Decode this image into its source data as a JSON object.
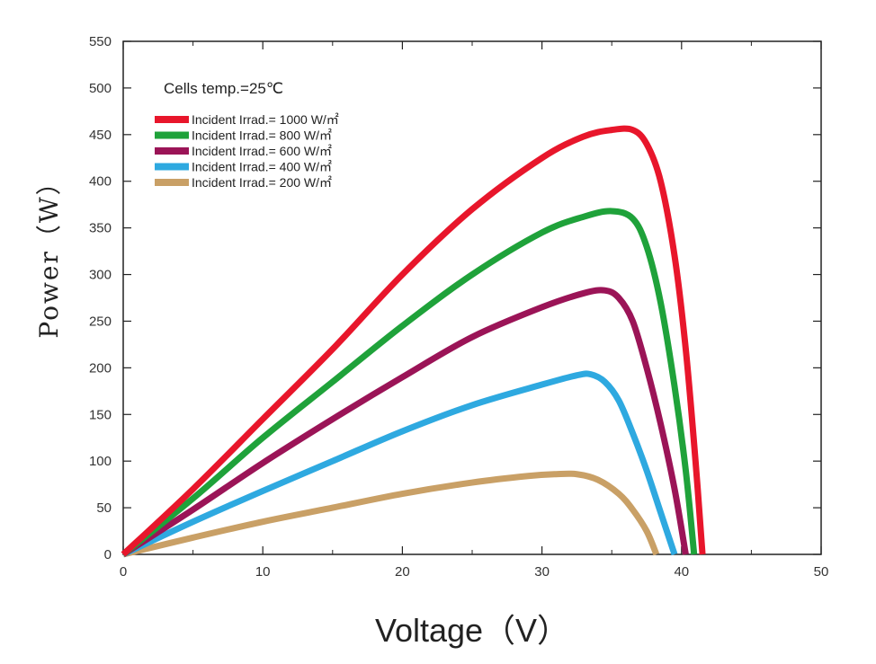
{
  "chart_data": {
    "type": "line",
    "xlabel": "Voltage（V）",
    "ylabel": "Power（W）",
    "xlim": [
      0,
      50
    ],
    "ylim": [
      0,
      550
    ],
    "xticks": [
      0,
      10,
      20,
      30,
      40,
      50
    ],
    "yticks": [
      0,
      50,
      100,
      150,
      200,
      250,
      300,
      350,
      400,
      450,
      500,
      550
    ],
    "grid": false,
    "legend_position": "top-left",
    "annotation": "Cells temp.=25℃",
    "series": [
      {
        "name": "Incident Irrad.= 1000 W/㎡",
        "color": "#e8162b",
        "x": [
          0,
          5,
          10,
          15,
          20,
          25,
          30,
          33,
          35,
          36.5,
          37.5,
          38.5,
          39.5,
          40.3,
          41,
          41.5
        ],
        "y": [
          0,
          70,
          145,
          220,
          300,
          370,
          425,
          448,
          455,
          455,
          440,
          400,
          320,
          220,
          100,
          0
        ]
      },
      {
        "name": "Incident Irrad.= 800 W/㎡",
        "color": "#1fa23a",
        "x": [
          0,
          5,
          10,
          15,
          20,
          25,
          30,
          33,
          35,
          36.5,
          37.5,
          38.5,
          39.5,
          40.3,
          40.9
        ],
        "y": [
          0,
          60,
          125,
          185,
          245,
          300,
          345,
          362,
          368,
          360,
          330,
          270,
          180,
          90,
          0
        ]
      },
      {
        "name": "Incident Irrad.= 600 W/㎡",
        "color": "#9b1457",
        "x": [
          0,
          5,
          10,
          15,
          20,
          25,
          30,
          33,
          34.5,
          35.5,
          36.5,
          37.5,
          38.5,
          39.5,
          40.3
        ],
        "y": [
          0,
          48,
          98,
          145,
          190,
          233,
          265,
          280,
          283,
          275,
          250,
          200,
          140,
          70,
          0
        ]
      },
      {
        "name": "Incident Irrad.= 400 W/㎡",
        "color": "#2ea9e0",
        "x": [
          0,
          5,
          10,
          15,
          20,
          25,
          30,
          32.5,
          33.5,
          34.5,
          35.5,
          36.5,
          37.5,
          38.5,
          39.5
        ],
        "y": [
          0,
          35,
          68,
          100,
          132,
          160,
          182,
          192,
          193,
          185,
          165,
          130,
          90,
          45,
          0
        ]
      },
      {
        "name": "Incident Irrad.= 200 W/㎡",
        "color": "#c9a066",
        "x": [
          0,
          5,
          10,
          15,
          20,
          25,
          29,
          31,
          32.5,
          34,
          35.5,
          36.5,
          37.5,
          38.2
        ],
        "y": [
          0,
          18,
          35,
          50,
          65,
          77,
          84,
          86,
          86,
          80,
          65,
          48,
          25,
          0
        ]
      }
    ]
  }
}
